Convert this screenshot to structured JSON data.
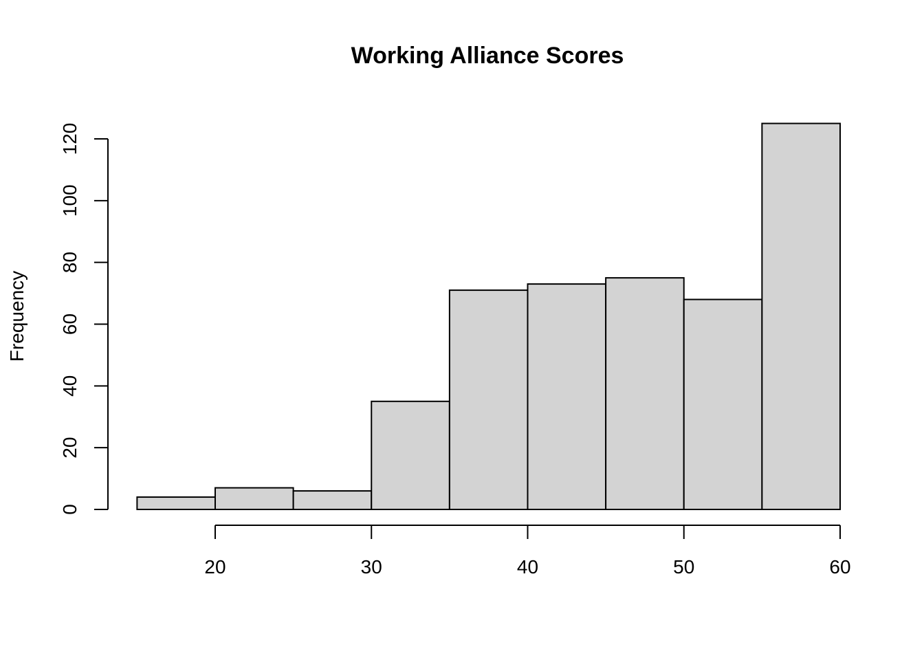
{
  "chart_data": {
    "type": "bar",
    "title": "Working Alliance Scores",
    "xlabel": "",
    "ylabel": "Frequency",
    "bins": [
      {
        "start": 15,
        "end": 20,
        "count": 4
      },
      {
        "start": 20,
        "end": 25,
        "count": 7
      },
      {
        "start": 25,
        "end": 30,
        "count": 6
      },
      {
        "start": 30,
        "end": 35,
        "count": 35
      },
      {
        "start": 35,
        "end": 40,
        "count": 71
      },
      {
        "start": 40,
        "end": 45,
        "count": 73
      },
      {
        "start": 45,
        "end": 50,
        "count": 75
      },
      {
        "start": 50,
        "end": 55,
        "count": 68
      },
      {
        "start": 55,
        "end": 60,
        "count": 125
      }
    ],
    "x_ticks": [
      20,
      30,
      40,
      50,
      60
    ],
    "y_ticks": [
      0,
      20,
      40,
      60,
      80,
      100,
      120
    ],
    "xlim": [
      15,
      60
    ],
    "ylim": [
      0,
      125
    ],
    "grid": false,
    "bar_color": "#d3d3d3"
  }
}
